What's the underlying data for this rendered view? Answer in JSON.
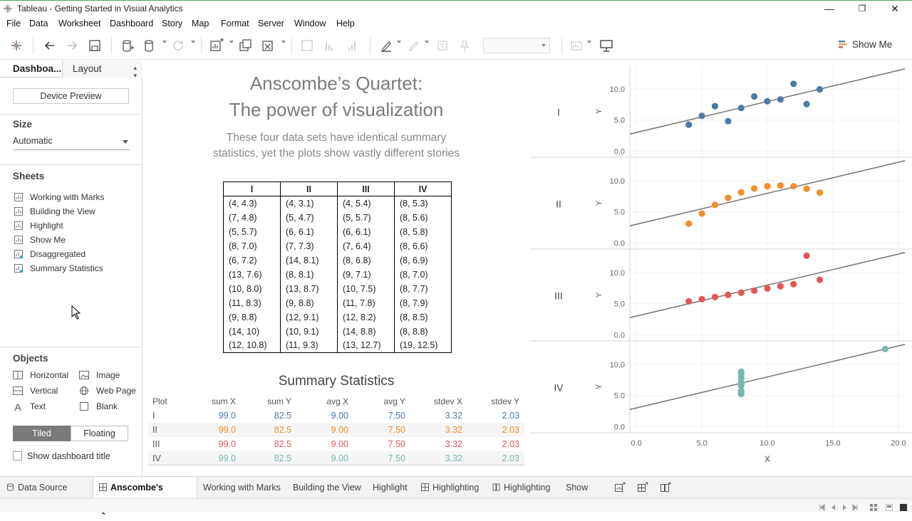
{
  "window": {
    "title": "Tableau - Getting Started in Visual Analytics",
    "minimize": "—",
    "restore": "❐",
    "close": "✕"
  },
  "menu": [
    "File",
    "Data",
    "Worksheet",
    "Dashboard",
    "Story",
    "Map",
    "Format",
    "Server",
    "Window",
    "Help"
  ],
  "toolbar": {
    "show_me": "Show Me"
  },
  "left_pane": {
    "tab_dashboard": "Dashboa...",
    "tab_layout": "Layout",
    "device_preview": "Device Preview",
    "size_heading": "Size",
    "size_value": "Automatic",
    "sheets_heading": "Sheets",
    "sheets": [
      "Working with Marks",
      "Building the View",
      "Highlight",
      "Show Me",
      "Disaggregated",
      "Summary Statistics"
    ],
    "objects_heading": "Objects",
    "objects": {
      "horizontal": "Horizontal",
      "image": "Image",
      "vertical": "Vertical",
      "web_page": "Web Page",
      "text": "Text",
      "blank": "Blank"
    },
    "tiled": "Tiled",
    "floating": "Floating",
    "show_title": "Show dashboard title"
  },
  "dashboard": {
    "title_line1": "Anscombe’s Quartet:",
    "title_line2": "The power of visualization",
    "subtitle_line1": "These four data sets have identical summary",
    "subtitle_line2": "statistics, yet the plots show vastly different stories",
    "table_headers": [
      "I",
      "II",
      "III",
      "IV"
    ],
    "table_rows": [
      [
        "(4, 4.3)",
        "(4, 3.1)",
        "(4, 5.4)",
        "(8, 5.3)"
      ],
      [
        "(7, 4.8)",
        "(5, 4.7)",
        "(5, 5.7)",
        "(8, 5.6)"
      ],
      [
        "(5, 5.7)",
        "(6, 6.1)",
        "(6, 6.1)",
        "(8, 5.8)"
      ],
      [
        "(8, 7.0)",
        "(7, 7.3)",
        "(7, 6.4)",
        "(8, 6.6)"
      ],
      [
        "(6, 7.2)",
        "(14, 8.1)",
        "(8, 6.8)",
        "(8, 6.9)"
      ],
      [
        "(13, 7.6)",
        "(8, 8.1)",
        "(9, 7.1)",
        "(8, 7.0)"
      ],
      [
        "(10, 8.0)",
        "(13, 8.7)",
        "(10, 7.5)",
        "(8, 7.7)"
      ],
      [
        "(11, 8.3)",
        "(9, 8.8)",
        "(11, 7.8)",
        "(8, 7.9)"
      ],
      [
        "(9, 8.8)",
        "(12, 9.1)",
        "(12, 8.2)",
        "(8, 8.5)"
      ],
      [
        "(14, 10)",
        "(10, 9.1)",
        "(14, 8.8)",
        "(8, 8.8)"
      ],
      [
        "(12, 10.8)",
        "(11, 9.3)",
        "(13, 12.7)",
        "(19, 12.5)"
      ]
    ],
    "summary_title": "Summary Statistics",
    "summary_headers": [
      "Plot",
      "sum X",
      "sum Y",
      "avg X",
      "avg Y",
      "stdev X",
      "stdev Y"
    ],
    "summary_rows": [
      {
        "plot": "I",
        "vals": [
          "99.0",
          "82.5",
          "9.00",
          "7.50",
          "3.32",
          "2.03"
        ],
        "color": "#4e79a7"
      },
      {
        "plot": "II",
        "vals": [
          "99.0",
          "82.5",
          "9.00",
          "7.50",
          "3.32",
          "2.03"
        ],
        "color": "#f28e2b"
      },
      {
        "plot": "III",
        "vals": [
          "99.0",
          "82.5",
          "9.00",
          "7.50",
          "3.32",
          "2.03"
        ],
        "color": "#e15759"
      },
      {
        "plot": "IV",
        "vals": [
          "99.0",
          "82.5",
          "9.00",
          "7.50",
          "3.32",
          "2.03"
        ],
        "color": "#76b7b2"
      }
    ]
  },
  "chart_data": {
    "type": "scatter",
    "xlabel": "X",
    "ylabel": "Y",
    "xlim": [
      -0.5,
      20.5
    ],
    "ylim": [
      -1,
      13.8
    ],
    "x_ticks": [
      "0.0",
      "5.0",
      "10.0",
      "15.0",
      "20.0"
    ],
    "y_ticks": [
      "0.0",
      "5.0",
      "10.0"
    ],
    "row_labels": [
      "I",
      "II",
      "III",
      "IV"
    ],
    "trend_line": {
      "intercept": 3.0,
      "slope": 0.5
    },
    "series": [
      {
        "name": "I",
        "color": "#4e79a7",
        "points": [
          [
            10,
            8.04
          ],
          [
            8,
            6.95
          ],
          [
            13,
            7.58
          ],
          [
            9,
            8.81
          ],
          [
            11,
            8.33
          ],
          [
            14,
            9.96
          ],
          [
            6,
            7.24
          ],
          [
            4,
            4.26
          ],
          [
            12,
            10.84
          ],
          [
            7,
            4.82
          ],
          [
            5,
            5.68
          ]
        ]
      },
      {
        "name": "II",
        "color": "#f28e2b",
        "points": [
          [
            10,
            9.14
          ],
          [
            8,
            8.14
          ],
          [
            13,
            8.74
          ],
          [
            9,
            8.77
          ],
          [
            11,
            9.26
          ],
          [
            14,
            8.1
          ],
          [
            6,
            6.13
          ],
          [
            4,
            3.1
          ],
          [
            12,
            9.13
          ],
          [
            7,
            7.26
          ],
          [
            5,
            4.74
          ]
        ]
      },
      {
        "name": "III",
        "color": "#e15759",
        "points": [
          [
            10,
            7.46
          ],
          [
            8,
            6.77
          ],
          [
            13,
            12.74
          ],
          [
            9,
            7.11
          ],
          [
            11,
            7.81
          ],
          [
            14,
            8.84
          ],
          [
            6,
            6.08
          ],
          [
            4,
            5.39
          ],
          [
            12,
            8.15
          ],
          [
            7,
            6.42
          ],
          [
            5,
            5.73
          ]
        ]
      },
      {
        "name": "IV",
        "color": "#76b7b2",
        "points": [
          [
            8,
            6.58
          ],
          [
            8,
            5.76
          ],
          [
            8,
            7.71
          ],
          [
            8,
            8.84
          ],
          [
            8,
            8.47
          ],
          [
            8,
            7.04
          ],
          [
            8,
            5.25
          ],
          [
            19,
            12.5
          ],
          [
            8,
            5.56
          ],
          [
            8,
            7.91
          ],
          [
            8,
            6.89
          ]
        ]
      }
    ]
  },
  "tabs": {
    "data_source": "Data Source",
    "sheets": [
      {
        "label": "Anscombe's Quartet",
        "type": "dashboard",
        "active": true
      },
      {
        "label": "Working with Marks",
        "type": "sheet"
      },
      {
        "label": "Building the View",
        "type": "sheet"
      },
      {
        "label": "Highlight",
        "type": "sheet"
      },
      {
        "label": "Highlighting",
        "type": "dashboard"
      },
      {
        "label": "Highlighting",
        "type": "story"
      },
      {
        "label": "Show Me",
        "type": "sheet"
      }
    ]
  }
}
